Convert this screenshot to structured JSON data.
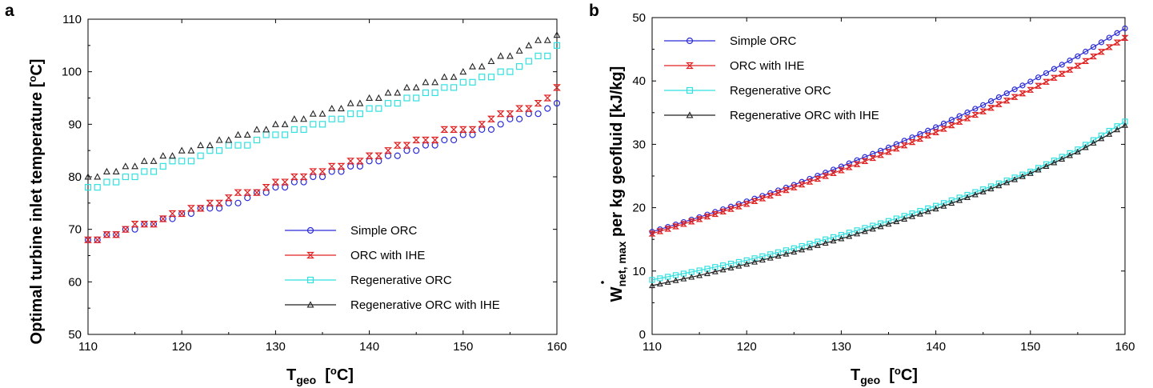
{
  "chart_data": [
    {
      "panel": "a",
      "type": "scatter",
      "ylabel": "Optimal turbine inlet temperature [",
      "ylabel_sup": "o",
      "ylabel_tail": "C]",
      "xlabel_main": "T",
      "xlabel_sub": "geo",
      "xlabel_open": "  [",
      "xlabel_sup": "o",
      "xlabel_tail": "C]",
      "xlim": [
        110,
        160
      ],
      "ylim": [
        50,
        110
      ],
      "xticks": [
        "110",
        "120",
        "130",
        "140",
        "150",
        "160"
      ],
      "yticks": [
        "50",
        "60",
        "70",
        "80",
        "90",
        "100",
        "110"
      ],
      "legend_position": "bottom-right",
      "series": [
        {
          "name": "Simple ORC",
          "color": "#2b2bd6",
          "marker": "circle",
          "x": [
            110,
            111,
            112,
            113,
            114,
            115,
            116,
            117,
            118,
            119,
            120,
            121,
            122,
            123,
            124,
            125,
            126,
            127,
            128,
            129,
            130,
            131,
            132,
            133,
            134,
            135,
            136,
            137,
            138,
            139,
            140,
            141,
            142,
            143,
            144,
            145,
            146,
            147,
            148,
            149,
            150,
            151,
            152,
            153,
            154,
            155,
            156,
            157,
            158,
            159,
            160
          ],
          "y": [
            68,
            68,
            69,
            69,
            70,
            70,
            71,
            71,
            72,
            72,
            73,
            73,
            74,
            74,
            74,
            75,
            75,
            76,
            77,
            77,
            78,
            78,
            79,
            79,
            80,
            80,
            81,
            81,
            82,
            82,
            83,
            83,
            84,
            84,
            85,
            85,
            86,
            86,
            87,
            87,
            88,
            88,
            89,
            89,
            90,
            91,
            91,
            92,
            92,
            93,
            94
          ]
        },
        {
          "name": "ORC with IHE",
          "color": "#e02020",
          "marker": "hourglass",
          "x": [
            110,
            111,
            112,
            113,
            114,
            115,
            116,
            117,
            118,
            119,
            120,
            121,
            122,
            123,
            124,
            125,
            126,
            127,
            128,
            129,
            130,
            131,
            132,
            133,
            134,
            135,
            136,
            137,
            138,
            139,
            140,
            141,
            142,
            143,
            144,
            145,
            146,
            147,
            148,
            149,
            150,
            151,
            152,
            153,
            154,
            155,
            156,
            157,
            158,
            159,
            160
          ],
          "y": [
            68,
            68,
            69,
            69,
            70,
            71,
            71,
            71,
            72,
            73,
            73,
            74,
            74,
            75,
            75,
            76,
            77,
            77,
            77,
            78,
            79,
            79,
            80,
            80,
            81,
            81,
            82,
            82,
            83,
            83,
            84,
            84,
            85,
            86,
            86,
            87,
            87,
            87,
            89,
            89,
            89,
            89,
            90,
            91,
            92,
            92,
            93,
            93,
            94,
            95,
            97
          ]
        },
        {
          "name": "Regenerative ORC",
          "color": "#33e0e0",
          "marker": "square",
          "x": [
            110,
            111,
            112,
            113,
            114,
            115,
            116,
            117,
            118,
            119,
            120,
            121,
            122,
            123,
            124,
            125,
            126,
            127,
            128,
            129,
            130,
            131,
            132,
            133,
            134,
            135,
            136,
            137,
            138,
            139,
            140,
            141,
            142,
            143,
            144,
            145,
            146,
            147,
            148,
            149,
            150,
            151,
            152,
            153,
            154,
            155,
            156,
            157,
            158,
            159,
            160
          ],
          "y": [
            78,
            78,
            79,
            79,
            80,
            80,
            81,
            81,
            82,
            83,
            83,
            83,
            84,
            85,
            85,
            86,
            86,
            86,
            87,
            88,
            88,
            88,
            89,
            89,
            90,
            90,
            91,
            91,
            92,
            92,
            93,
            93,
            94,
            94,
            95,
            95,
            96,
            96,
            97,
            97,
            98,
            98,
            99,
            99,
            100,
            100,
            101,
            102,
            103,
            103,
            105
          ]
        },
        {
          "name": "Regenerative ORC with IHE",
          "color": "#222222",
          "marker": "triangle",
          "x": [
            110,
            111,
            112,
            113,
            114,
            115,
            116,
            117,
            118,
            119,
            120,
            121,
            122,
            123,
            124,
            125,
            126,
            127,
            128,
            129,
            130,
            131,
            132,
            133,
            134,
            135,
            136,
            137,
            138,
            139,
            140,
            141,
            142,
            143,
            144,
            145,
            146,
            147,
            148,
            149,
            150,
            151,
            152,
            153,
            154,
            155,
            156,
            157,
            158,
            159,
            160
          ],
          "y": [
            80,
            80,
            81,
            81,
            82,
            82,
            83,
            83,
            84,
            84,
            85,
            85,
            86,
            86,
            87,
            87,
            88,
            88,
            89,
            89,
            90,
            90,
            91,
            91,
            92,
            92,
            93,
            93,
            94,
            94,
            95,
            95,
            96,
            96,
            97,
            97,
            98,
            98,
            99,
            99,
            100,
            101,
            101,
            102,
            103,
            103,
            104,
            105,
            106,
            106,
            107
          ]
        }
      ]
    },
    {
      "panel": "b",
      "type": "line",
      "ylabel_w": "W",
      "ylabel_sub": "net, max",
      "ylabel_tail": " per kg geofluid [kJ/kg]",
      "xlabel_main": "T",
      "xlabel_sub": "geo",
      "xlabel_open": "  [",
      "xlabel_sup": "o",
      "xlabel_tail": "C]",
      "xlim": [
        110,
        160
      ],
      "ylim": [
        0,
        50
      ],
      "xticks": [
        "110",
        "120",
        "130",
        "140",
        "150",
        "160"
      ],
      "yticks": [
        "0",
        "10",
        "20",
        "30",
        "40",
        "50"
      ],
      "legend_position": "top-left",
      "series": [
        {
          "name": "Simple ORC",
          "color": "#2b2bd6",
          "marker": "circle",
          "x": [
            110,
            115,
            120,
            125,
            130,
            135,
            140,
            145,
            150,
            155,
            160
          ],
          "y": [
            16.2,
            18.5,
            21.0,
            23.6,
            26.5,
            29.5,
            32.7,
            36.2,
            39.9,
            43.9,
            48.3
          ]
        },
        {
          "name": "ORC with IHE",
          "color": "#e02020",
          "marker": "hourglass",
          "x": [
            110,
            115,
            120,
            125,
            130,
            135,
            140,
            145,
            150,
            155,
            160
          ],
          "y": [
            15.9,
            18.2,
            20.6,
            23.2,
            25.9,
            28.8,
            31.9,
            35.2,
            38.6,
            42.4,
            46.8
          ]
        },
        {
          "name": "Regenerative ORC",
          "color": "#33e0e0",
          "marker": "square",
          "x": [
            110,
            115,
            120,
            125,
            130,
            135,
            140,
            145,
            150,
            155,
            160
          ],
          "y": [
            8.6,
            10.1,
            11.7,
            13.6,
            15.7,
            17.9,
            20.3,
            22.9,
            25.7,
            29.2,
            33.6
          ]
        },
        {
          "name": "Regenerative ORC with IHE",
          "color": "#222222",
          "marker": "triangle",
          "x": [
            110,
            115,
            120,
            125,
            130,
            135,
            140,
            145,
            150,
            155,
            160
          ],
          "y": [
            7.7,
            9.3,
            11.1,
            13.0,
            15.1,
            17.4,
            19.8,
            22.5,
            25.4,
            28.8,
            33.0
          ]
        }
      ]
    }
  ]
}
